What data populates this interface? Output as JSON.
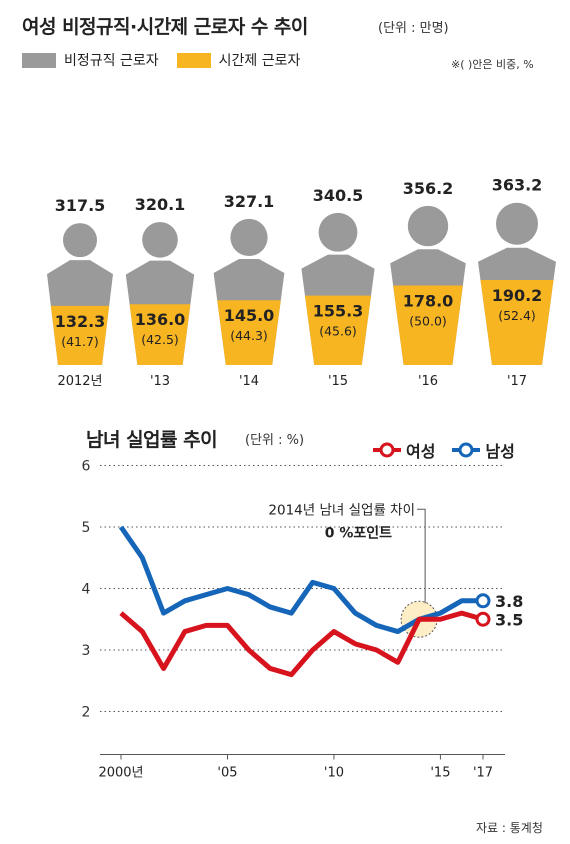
{
  "chart_data": [
    {
      "type": "bar",
      "title": "여성 비정규직·시간제 근로자 수 추이",
      "unit": "(단위 : 만명)",
      "note": "※( )안은 비중, %",
      "categories": [
        "2012년",
        "'13",
        "'14",
        "'15",
        "'16",
        "'17"
      ],
      "series": [
        {
          "name": "비정규직 근로자",
          "color": "#9a9a9a",
          "values": [
            317.5,
            320.1,
            327.1,
            340.5,
            356.2,
            363.2
          ],
          "labels": [
            "317.5",
            "320.1",
            "327.1",
            "340.5",
            "356.2",
            "363.2"
          ]
        },
        {
          "name": "시간제 근로자",
          "color": "#f8b522",
          "values": [
            132.3,
            136.0,
            145.0,
            155.3,
            178.0,
            190.2
          ],
          "labels": [
            "132.3",
            "136.0",
            "145.0",
            "155.3",
            "178.0",
            "190.2"
          ]
        }
      ],
      "shares": [
        "(41.7)",
        "(42.5)",
        "(44.3)",
        "(45.6)",
        "(50.0)",
        "(52.4)"
      ]
    },
    {
      "type": "line",
      "title": "남녀 실업률 추이",
      "unit": "(단위 : %)",
      "x": [
        2000,
        2001,
        2002,
        2003,
        2004,
        2005,
        2006,
        2007,
        2008,
        2009,
        2010,
        2011,
        2012,
        2013,
        2014,
        2015,
        2016,
        2017
      ],
      "x_tick_labels": [
        {
          "x": 2000,
          "label": "2000년"
        },
        {
          "x": 2005,
          "label": "'05"
        },
        {
          "x": 2010,
          "label": "'10"
        },
        {
          "x": 2015,
          "label": "'15"
        },
        {
          "x": 2017,
          "label": "'17"
        }
      ],
      "ylim": [
        1.3,
        6
      ],
      "yticks": [
        "2",
        "3",
        "4",
        "5",
        "6"
      ],
      "grid": "horizontal dotted",
      "legend_position": "top-right",
      "series": [
        {
          "name": "여성",
          "color": "#d7141e",
          "values": [
            3.6,
            3.3,
            2.7,
            3.3,
            3.4,
            3.4,
            3.0,
            2.7,
            2.6,
            3.0,
            3.3,
            3.1,
            3.0,
            2.8,
            3.5,
            3.5,
            3.6,
            3.5
          ],
          "end_label": "3.5"
        },
        {
          "name": "남성",
          "color": "#1565b8",
          "values": [
            5.0,
            4.5,
            3.6,
            3.8,
            3.9,
            4.0,
            3.9,
            3.7,
            3.6,
            4.1,
            4.0,
            3.6,
            3.4,
            3.3,
            3.5,
            3.6,
            3.8,
            3.8
          ],
          "end_label": "3.8"
        }
      ],
      "annotation": {
        "line1": "2014년 남녀 실업률 차이",
        "line2": "0 %포인트",
        "x": 2014,
        "y": 3.5
      }
    }
  ],
  "source": "자료 : 통계청"
}
